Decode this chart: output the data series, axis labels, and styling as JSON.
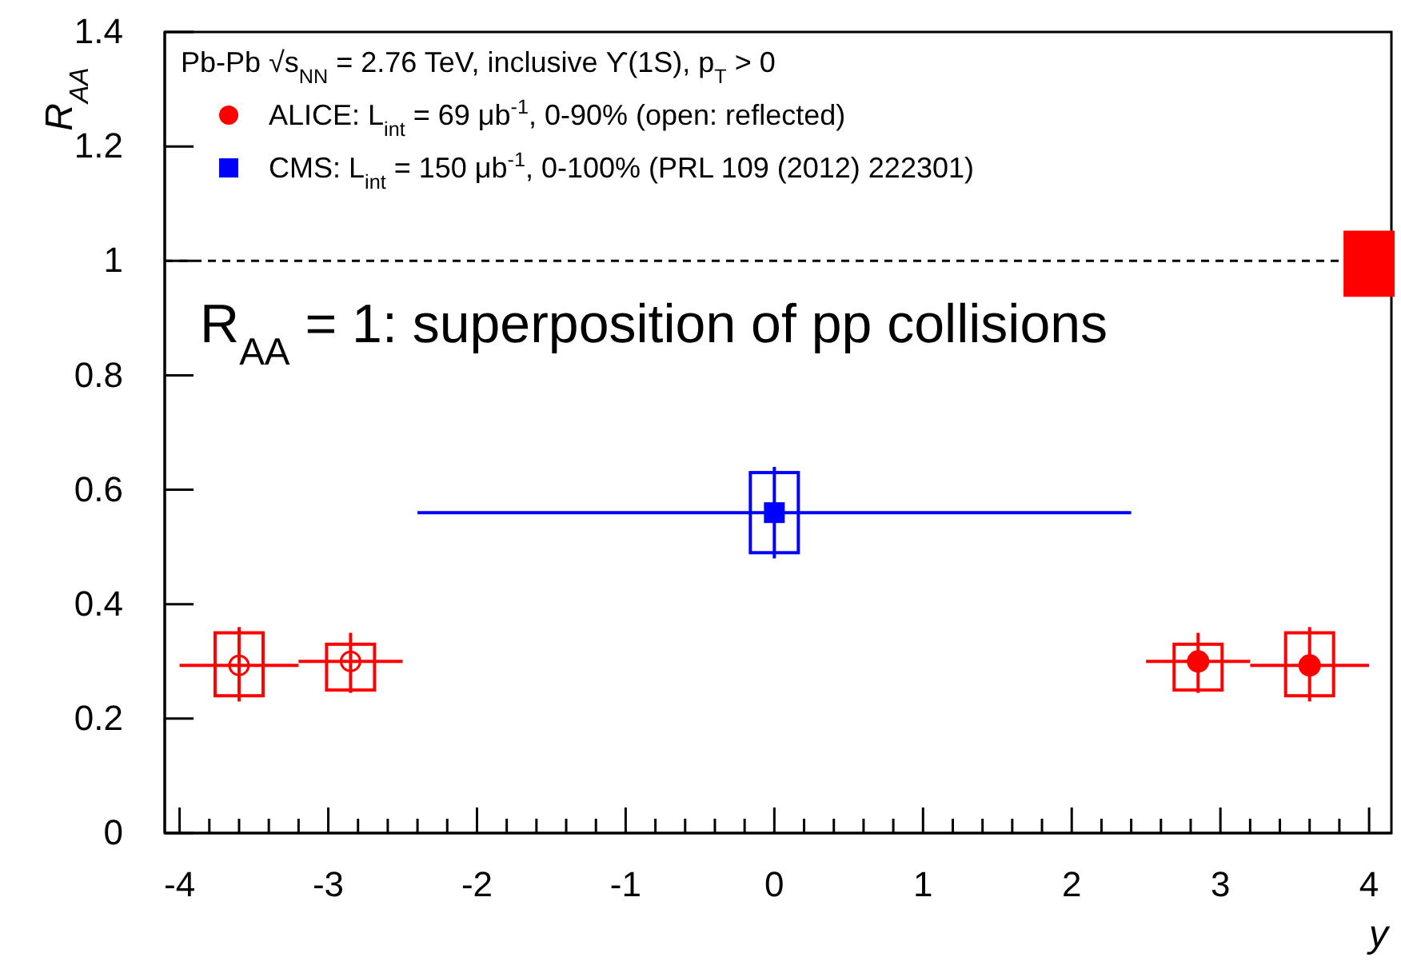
{
  "chart_data": {
    "type": "scatter",
    "ylabel": "R$_{AA}$",
    "xlabel": "y",
    "legend_title": "Pb-Pb √s$_{NN}$ = 2.76 TeV, inclusive ϒ(1S), p$_{T}$ > 0",
    "legend": "top left",
    "xlim": [
      -4.1,
      4.15
    ],
    "xticks": [
      -4,
      {
        "value": -3.8,
        "label": null
      },
      {
        "value": -3.6,
        "label": null
      },
      {
        "value": -3.4,
        "label": null
      },
      {
        "value": -3.2,
        "label": null
      },
      -3,
      {
        "value": -2.8,
        "label": null
      },
      {
        "value": -2.6,
        "label": null
      },
      {
        "value": -2.4,
        "label": null
      },
      {
        "value": -2.2,
        "label": null
      },
      -2,
      {
        "value": -1.8,
        "label": null
      },
      {
        "value": -1.6,
        "label": null
      },
      {
        "value": -1.4,
        "label": null
      },
      {
        "value": -1.2,
        "label": null
      },
      -1,
      {
        "value": -0.8,
        "label": null
      },
      {
        "value": -0.6,
        "label": null
      },
      {
        "value": -0.4,
        "label": null
      },
      {
        "value": -0.2,
        "label": null
      },
      0,
      {
        "value": 0.2,
        "label": null
      },
      {
        "value": 0.4,
        "label": null
      },
      {
        "value": 0.6,
        "label": null
      },
      {
        "value": 0.8,
        "label": null
      },
      1,
      {
        "value": 1.2,
        "label": null
      },
      {
        "value": 1.4,
        "label": null
      },
      {
        "value": 1.6,
        "label": null
      },
      {
        "value": 1.8,
        "label": null
      },
      2,
      {
        "value": 2.2,
        "label": null
      },
      {
        "value": 2.4,
        "label": null
      },
      {
        "value": 2.6,
        "label": null
      },
      {
        "value": 2.8,
        "label": null
      },
      3,
      {
        "value": 3.2,
        "label": null
      },
      {
        "value": 3.4,
        "label": null
      },
      {
        "value": 3.6,
        "label": null
      },
      {
        "value": 3.8,
        "label": null
      },
      4
    ],
    "ylim": [
      0,
      1.4
    ],
    "yticks": [
      0,
      0.2,
      0.4,
      0.6,
      0.8,
      1,
      1.2,
      1.4
    ],
    "ref_lines": [
      {
        "axis": "y",
        "value": 1,
        "line_style": "dashed",
        "color": "#000000"
      }
    ],
    "annotations": [
      "R$_{AA}$ = 1: superposition of pp collisions"
    ],
    "series": [
      {
        "type": "bar",
        "color": "#ff0000",
        "x": [
          -3.6,
          -2.85,
          2.85,
          3.6
        ],
        "base": [
          0.24,
          0.25,
          0.25,
          0.24
        ],
        "values": [
          0.11,
          0.08,
          0.08,
          0.11
        ]
      },
      {
        "type": "bar",
        "color": "#0000ff",
        "x": [
          0
        ],
        "base": [
          0.49
        ],
        "values": [
          0.14
        ]
      },
      {
        "type": "bar",
        "colors": [
          "#ff0000"
        ],
        "x": [
          4
        ],
        "base": [
          0.94
        ],
        "values": [
          0.11
        ]
      },
      {
        "name": "ALICE: L$_{int}$ = 69 μb$^{-1}$, 0-90% (open: reflected)",
        "color": "#ff0000",
        "marker": "circle",
        "x": [
          2.85,
          3.6
        ],
        "values": [
          0.3,
          0.293
        ],
        "errors": [
          [
            0.245,
            0.35
          ],
          [
            0.23,
            0.36
          ]
        ],
        "xerrors": [
          [
            2.5,
            3.2
          ],
          [
            3.2,
            4.0
          ]
        ]
      },
      {
        "name": "CMS: L$_{int}$ = 150 μb$^{-1}$, 0-100% (PRL 109 (2012) 222301)",
        "color": "#0000ff",
        "marker": "square",
        "x": [
          0
        ],
        "values": [
          0.56
        ],
        "errors": [
          [
            0.48,
            0.64
          ]
        ],
        "xerrors": [
          [
            -2.4,
            2.4
          ]
        ]
      },
      {
        "color": "#ff0000",
        "marker": "circle",
        "x": [
          -3.6,
          -2.85
        ],
        "values": [
          0.293,
          0.3
        ],
        "errors": [
          [
            0.23,
            0.36
          ],
          [
            0.245,
            0.35
          ]
        ],
        "xerrors": [
          [
            -4.0,
            -3.2
          ],
          [
            -3.2,
            -2.5
          ]
        ]
      }
    ]
  }
}
